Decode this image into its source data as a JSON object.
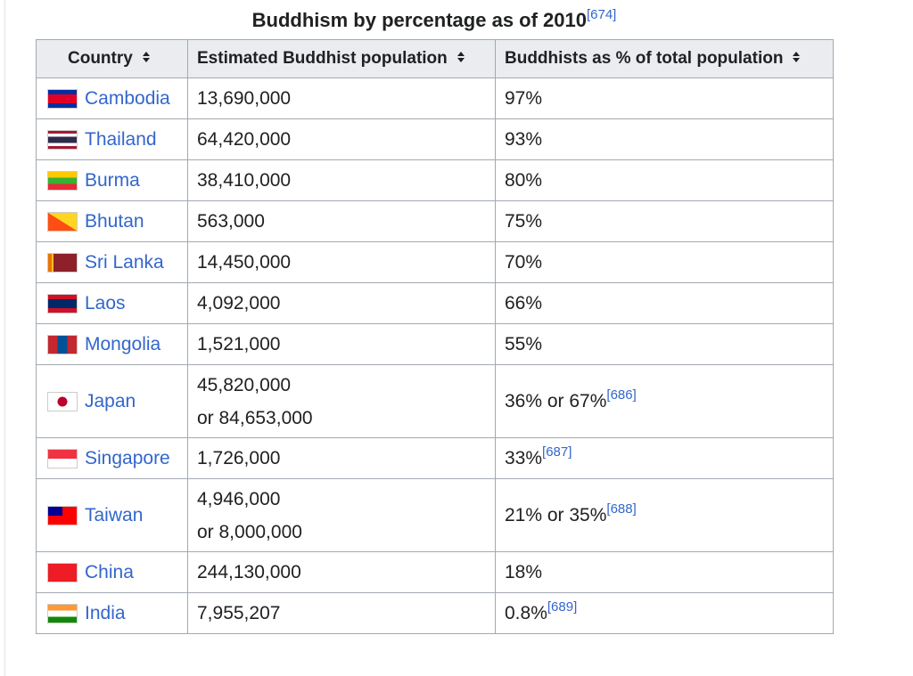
{
  "caption": {
    "title": "Buddhism by percentage as of 2010",
    "ref": "[674]"
  },
  "table": {
    "headers": [
      "Country",
      "Estimated Buddhist population",
      "Buddhists as % of total population"
    ],
    "rows": [
      {
        "country": "Cambodia",
        "population": [
          "13,690,000"
        ],
        "percent": "97%"
      },
      {
        "country": "Thailand",
        "population": [
          "64,420,000"
        ],
        "percent": "93%"
      },
      {
        "country": "Burma",
        "population": [
          "38,410,000"
        ],
        "percent": "80%"
      },
      {
        "country": "Bhutan",
        "population": [
          "563,000"
        ],
        "percent": "75%"
      },
      {
        "country": "Sri Lanka",
        "population": [
          "14,450,000"
        ],
        "percent": "70%"
      },
      {
        "country": "Laos",
        "population": [
          "4,092,000"
        ],
        "percent": "66%"
      },
      {
        "country": "Mongolia",
        "population": [
          "1,521,000"
        ],
        "percent": "55%"
      },
      {
        "country": "Japan",
        "population": [
          "45,820,000",
          "or 84,653,000"
        ],
        "percent": "36% or 67%",
        "ref": "[686]"
      },
      {
        "country": "Singapore",
        "population": [
          "1,726,000"
        ],
        "percent": "33%",
        "ref": "[687]"
      },
      {
        "country": "Taiwan",
        "population": [
          "4,946,000",
          "or 8,000,000"
        ],
        "percent": "21% or 35%",
        "ref": "[688]"
      },
      {
        "country": "China",
        "population": [
          "244,130,000"
        ],
        "percent": "18%"
      },
      {
        "country": "India",
        "population": [
          "7,955,207"
        ],
        "percent": "0.8%",
        "ref": "[689]"
      }
    ]
  }
}
